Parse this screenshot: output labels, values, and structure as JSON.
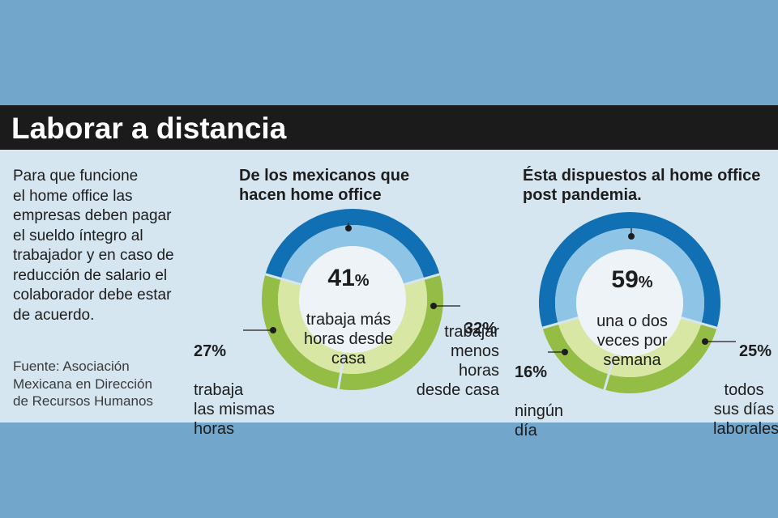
{
  "header": {
    "title": "Laborar a distancia"
  },
  "intro": {
    "text": "Para que funcione\nel home office las\nempresas deben pagar\nel sueldo íntegro al\ntrabajador y en caso de\nreducción de salario el\ncolaborador debe estar\nde acuerdo.",
    "source": "Fuente: Asociación\nMexicana en Dirección\nde Recursos Humanos"
  },
  "colors": {
    "dark_blue": "#1170b3",
    "light_blue": "#8ec4e6",
    "green": "#94bd45",
    "light_green": "#d9e7a4",
    "center": "#eef3f7"
  },
  "chart_data": [
    {
      "type": "pie",
      "style": "donut",
      "title": "De los mexicanos que\nhacen home office",
      "categories": [
        "trabaja más horas desde casa",
        "trabajar menos horas desde casa",
        "trabaja las mismas horas"
      ],
      "values": [
        41,
        32,
        27
      ],
      "labels": [
        {
          "value": "41",
          "unit": "%",
          "text": "trabaja más\nhoras desde\ncasa"
        },
        {
          "value": "32",
          "unit": "%",
          "text": "trabajar\nmenos\nhoras\ndesde casa"
        },
        {
          "value": "27",
          "unit": "%",
          "text": "trabaja\nlas mismas\nhoras"
        }
      ]
    },
    {
      "type": "pie",
      "style": "donut",
      "title": "Ésta dispuestos al home office\npost pandemia.",
      "categories": [
        "una o dos veces por semana",
        "todos sus días laborales",
        "ningún día"
      ],
      "values": [
        59,
        25,
        16
      ],
      "labels": [
        {
          "value": "59",
          "unit": "%",
          "text": "una o dos\nveces por\nsemana"
        },
        {
          "value": "25",
          "unit": "%",
          "text": "todos\nsus días\nlaborales"
        },
        {
          "value": "16",
          "unit": "%",
          "text": "ningún\ndía"
        }
      ]
    }
  ]
}
